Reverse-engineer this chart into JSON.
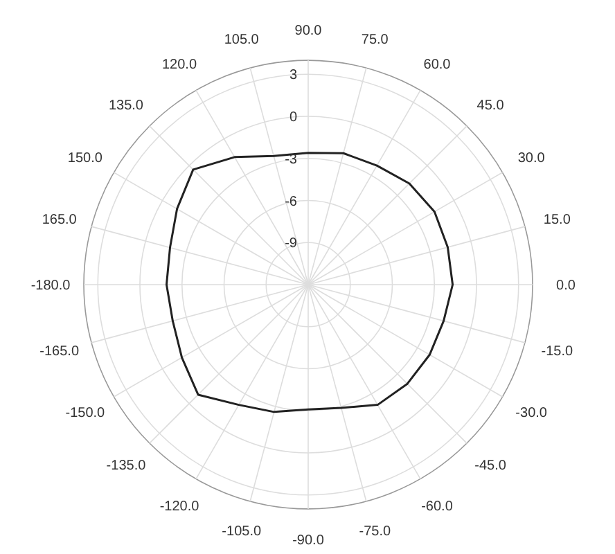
{
  "chart_data": {
    "type": "radar",
    "categories": [
      "90.0",
      "75.0",
      "60.0",
      "45.0",
      "30.0",
      "15.0",
      "0.0",
      "-15.0",
      "-30.0",
      "-45.0",
      "-60.0",
      "-75.0",
      "-90.0",
      "-105.0",
      "-120.0",
      "-135.0",
      "-150.0",
      "-165.0",
      "-180.0",
      "165.0",
      "150.0",
      "135.0",
      "120.0",
      "105.0"
    ],
    "series": [
      {
        "color": "#222222",
        "values": [
          -2.6,
          -2.3,
          -2.2,
          -1.8,
          -1.6,
          -1.7,
          -1.7,
          -2.0,
          -2.0,
          -2.0,
          -2.1,
          -2.9,
          -3.1,
          -2.6,
          -2.1,
          -0.9,
          -1.6,
          -2.0,
          -1.9,
          -1.8,
          -1.2,
          -0.4,
          -1.5,
          -2.5
        ]
      }
    ],
    "ylim": [
      -12,
      4
    ],
    "yticks": [
      -9,
      -6,
      -3,
      0,
      3
    ],
    "grid": true,
    "marker": "none",
    "line_style": "solid"
  }
}
